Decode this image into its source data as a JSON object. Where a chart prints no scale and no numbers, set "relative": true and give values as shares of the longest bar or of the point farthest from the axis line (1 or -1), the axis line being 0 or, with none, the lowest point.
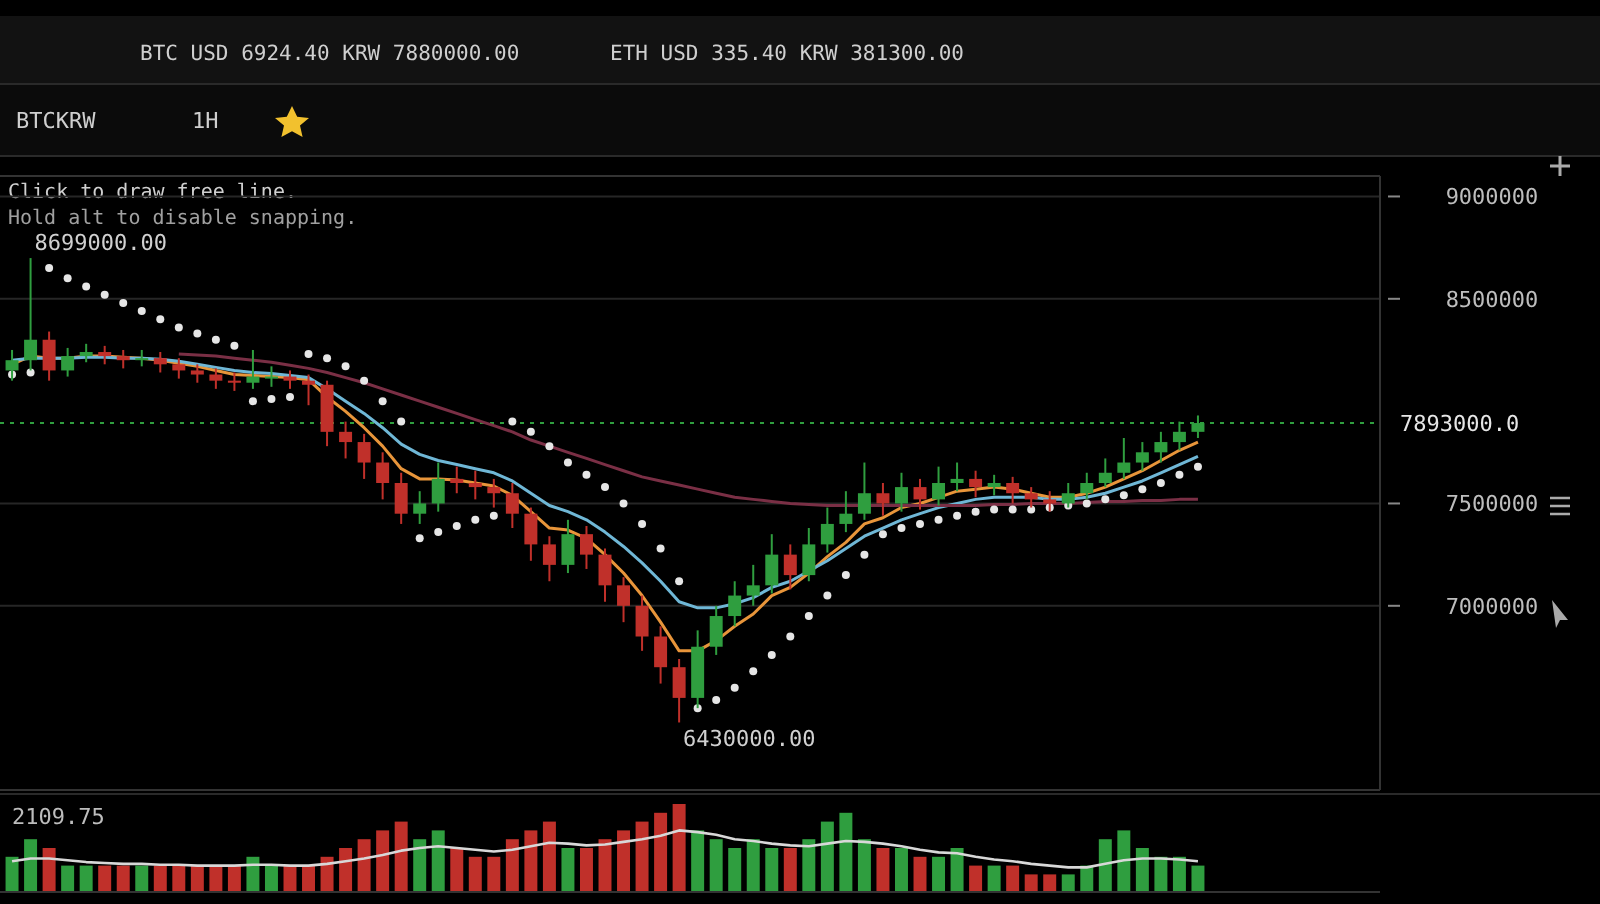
{
  "chart_data": [
    {
      "type": "candlestick",
      "categories": [
        null,
        null,
        null,
        null,
        null,
        null,
        null,
        null,
        null,
        null,
        null,
        null,
        null,
        null,
        null,
        null,
        null,
        null,
        null,
        null,
        null,
        null,
        null,
        null,
        null,
        null,
        null,
        null,
        null,
        null,
        null,
        null,
        null,
        null,
        null,
        null,
        null,
        null,
        null,
        null,
        null,
        null,
        null,
        null,
        null,
        null,
        null,
        null,
        null,
        null,
        null,
        null,
        null,
        null,
        null,
        null,
        null,
        null,
        null,
        null,
        null,
        null,
        null,
        null,
        null
      ],
      "ohlc": [
        [
          8150000,
          8250000,
          8100000,
          8200000
        ],
        [
          8200000,
          8699000,
          8150000,
          8300000
        ],
        [
          8300000,
          8340000,
          8100000,
          8150000
        ],
        [
          8150000,
          8260000,
          8120000,
          8220000
        ],
        [
          8220000,
          8280000,
          8190000,
          8240000
        ],
        [
          8240000,
          8270000,
          8180000,
          8220000
        ],
        [
          8220000,
          8250000,
          8160000,
          8200000
        ],
        [
          8200000,
          8250000,
          8170000,
          8210000
        ],
        [
          8210000,
          8240000,
          8140000,
          8180000
        ],
        [
          8180000,
          8210000,
          8110000,
          8150000
        ],
        [
          8150000,
          8180000,
          8090000,
          8130000
        ],
        [
          8130000,
          8160000,
          8060000,
          8100000
        ],
        [
          8100000,
          8140000,
          8050000,
          8090000
        ],
        [
          8090000,
          8250000,
          8060000,
          8120000
        ],
        [
          8120000,
          8170000,
          8070000,
          8120000
        ],
        [
          8120000,
          8150000,
          8060000,
          8100000
        ],
        [
          8100000,
          8130000,
          7980000,
          8080000
        ],
        [
          8080000,
          8100000,
          7780000,
          7850000
        ],
        [
          7850000,
          7900000,
          7720000,
          7800000
        ],
        [
          7800000,
          7840000,
          7620000,
          7700000
        ],
        [
          7700000,
          7750000,
          7520000,
          7600000
        ],
        [
          7600000,
          7650000,
          7400000,
          7450000
        ],
        [
          7450000,
          7560000,
          7400000,
          7500000
        ],
        [
          7500000,
          7700000,
          7460000,
          7620000
        ],
        [
          7620000,
          7680000,
          7550000,
          7600000
        ],
        [
          7600000,
          7660000,
          7520000,
          7580000
        ],
        [
          7580000,
          7620000,
          7480000,
          7550000
        ],
        [
          7550000,
          7600000,
          7380000,
          7450000
        ],
        [
          7450000,
          7480000,
          7220000,
          7300000
        ],
        [
          7300000,
          7340000,
          7120000,
          7200000
        ],
        [
          7200000,
          7420000,
          7160000,
          7350000
        ],
        [
          7350000,
          7390000,
          7180000,
          7250000
        ],
        [
          7250000,
          7280000,
          7020000,
          7100000
        ],
        [
          7100000,
          7140000,
          6920000,
          7000000
        ],
        [
          7000000,
          7050000,
          6780000,
          6850000
        ],
        [
          6850000,
          6900000,
          6620000,
          6700000
        ],
        [
          6700000,
          6740000,
          6430000,
          6550000
        ],
        [
          6550000,
          6880000,
          6500000,
          6800000
        ],
        [
          6800000,
          7000000,
          6760000,
          6950000
        ],
        [
          6950000,
          7120000,
          6900000,
          7050000
        ],
        [
          7050000,
          7200000,
          7000000,
          7100000
        ],
        [
          7100000,
          7350000,
          7060000,
          7250000
        ],
        [
          7250000,
          7300000,
          7080000,
          7150000
        ],
        [
          7150000,
          7380000,
          7120000,
          7300000
        ],
        [
          7300000,
          7480000,
          7260000,
          7400000
        ],
        [
          7400000,
          7560000,
          7360000,
          7450000
        ],
        [
          7450000,
          7700000,
          7420000,
          7550000
        ],
        [
          7550000,
          7600000,
          7440000,
          7500000
        ],
        [
          7500000,
          7650000,
          7460000,
          7580000
        ],
        [
          7580000,
          7620000,
          7470000,
          7520000
        ],
        [
          7520000,
          7680000,
          7490000,
          7600000
        ],
        [
          7600000,
          7700000,
          7560000,
          7620000
        ],
        [
          7620000,
          7660000,
          7530000,
          7580000
        ],
        [
          7580000,
          7640000,
          7540000,
          7600000
        ],
        [
          7600000,
          7630000,
          7500000,
          7550000
        ],
        [
          7550000,
          7580000,
          7480000,
          7520000
        ],
        [
          7520000,
          7560000,
          7460000,
          7500000
        ],
        [
          7500000,
          7600000,
          7480000,
          7550000
        ],
        [
          7550000,
          7650000,
          7520000,
          7600000
        ],
        [
          7600000,
          7720000,
          7580000,
          7650000
        ],
        [
          7650000,
          7820000,
          7620000,
          7700000
        ],
        [
          7700000,
          7800000,
          7660000,
          7750000
        ],
        [
          7750000,
          7850000,
          7700000,
          7800000
        ],
        [
          7800000,
          7900000,
          7760000,
          7850000
        ],
        [
          7850000,
          7930000,
          7820000,
          7893000
        ]
      ],
      "colors": [
        "#2f9e3f",
        "#2f9e3f",
        "#c0302a",
        "#2f9e3f",
        "#2f9e3f",
        "#c0302a",
        "#c0302a",
        "#2f9e3f",
        "#c0302a",
        "#c0302a",
        "#c0302a",
        "#c0302a",
        "#c0302a",
        "#2f9e3f",
        "#2f9e3f",
        "#c0302a",
        "#c0302a",
        "#c0302a",
        "#c0302a",
        "#c0302a",
        "#c0302a",
        "#c0302a",
        "#2f9e3f",
        "#2f9e3f",
        "#c0302a",
        "#c0302a",
        "#c0302a",
        "#c0302a",
        "#c0302a",
        "#c0302a",
        "#2f9e3f",
        "#c0302a",
        "#c0302a",
        "#c0302a",
        "#c0302a",
        "#c0302a",
        "#c0302a",
        "#2f9e3f",
        "#2f9e3f",
        "#2f9e3f",
        "#2f9e3f",
        "#2f9e3f",
        "#c0302a",
        "#2f9e3f",
        "#2f9e3f",
        "#2f9e3f",
        "#2f9e3f",
        "#c0302a",
        "#2f9e3f",
        "#c0302a",
        "#2f9e3f",
        "#2f9e3f",
        "#c0302a",
        "#2f9e3f",
        "#c0302a",
        "#c0302a",
        "#c0302a",
        "#2f9e3f",
        "#2f9e3f",
        "#2f9e3f",
        "#2f9e3f",
        "#2f9e3f",
        "#2f9e3f",
        "#2f9e3f",
        "#2f9e3f"
      ],
      "series": [
        {
          "type": "line",
          "color": "#e8953a",
          "values": [
            8180000,
            8220000,
            8210000,
            8210000,
            8220000,
            8220000,
            8215000,
            8210000,
            8200000,
            8185000,
            8170000,
            8150000,
            8130000,
            8125000,
            8120000,
            8115000,
            8105000,
            8020000,
            7950000,
            7870000,
            7780000,
            7670000,
            7620000,
            7620000,
            7615000,
            7600000,
            7585000,
            7540000,
            7460000,
            7380000,
            7370000,
            7330000,
            7250000,
            7160000,
            7050000,
            6920000,
            6780000,
            6780000,
            6830000,
            6900000,
            6960000,
            7050000,
            7090000,
            7160000,
            7240000,
            7310000,
            7400000,
            7430000,
            7480000,
            7500000,
            7530000,
            7560000,
            7570000,
            7580000,
            7570000,
            7550000,
            7530000,
            7530000,
            7550000,
            7580000,
            7620000,
            7660000,
            7710000,
            7760000,
            7800000
          ]
        },
        {
          "type": "line",
          "color": "#6fb7d6",
          "values": [
            8200000,
            8210000,
            8210000,
            8210000,
            8215000,
            8215000,
            8210000,
            8210000,
            8205000,
            8195000,
            8180000,
            8165000,
            8150000,
            8140000,
            8135000,
            8125000,
            8115000,
            8060000,
            8000000,
            7940000,
            7870000,
            7790000,
            7740000,
            7710000,
            7690000,
            7670000,
            7650000,
            7610000,
            7550000,
            7490000,
            7460000,
            7420000,
            7360000,
            7290000,
            7210000,
            7120000,
            7020000,
            6990000,
            6990000,
            7010000,
            7040000,
            7090000,
            7120000,
            7170000,
            7220000,
            7280000,
            7340000,
            7380000,
            7420000,
            7450000,
            7480000,
            7500000,
            7520000,
            7530000,
            7530000,
            7530000,
            7520000,
            7520000,
            7530000,
            7550000,
            7580000,
            7610000,
            7650000,
            7690000,
            7730000
          ]
        },
        {
          "type": "line",
          "color": "#7a2f45",
          "values": [
            null,
            null,
            null,
            null,
            null,
            null,
            null,
            null,
            null,
            8230000,
            8225000,
            8220000,
            8210000,
            8200000,
            8190000,
            8175000,
            8160000,
            8140000,
            8115000,
            8090000,
            8060000,
            8030000,
            8000000,
            7970000,
            7940000,
            7910000,
            7880000,
            7850000,
            7810000,
            7780000,
            7750000,
            7720000,
            7690000,
            7660000,
            7630000,
            7610000,
            7590000,
            7570000,
            7550000,
            7530000,
            7520000,
            7510000,
            7500000,
            7495000,
            7490000,
            7490000,
            7490000,
            7490000,
            7490000,
            7490000,
            7490000,
            7490000,
            7490000,
            7495000,
            7495000,
            7500000,
            7500000,
            7500000,
            7505000,
            7510000,
            7510000,
            7515000,
            7515000,
            7520000,
            7520000
          ]
        },
        {
          "type": "scatter",
          "color": "#e6e6e6",
          "marker": "circle",
          "values": [
            8130000,
            8140000,
            8650000,
            8600000,
            8560000,
            8520000,
            8480000,
            8440000,
            8400000,
            8360000,
            8330000,
            8300000,
            8270000,
            8000000,
            8010000,
            8020000,
            8230000,
            8210000,
            8170000,
            8100000,
            8000000,
            7900000,
            7330000,
            7360000,
            7390000,
            7420000,
            7440000,
            7900000,
            7850000,
            7780000,
            7700000,
            7640000,
            7580000,
            7500000,
            7400000,
            7280000,
            7120000,
            6500000,
            6540000,
            6600000,
            6680000,
            6760000,
            6850000,
            6950000,
            7050000,
            7150000,
            7250000,
            7350000,
            7380000,
            7400000,
            7420000,
            7440000,
            7460000,
            7470000,
            7470000,
            7470000,
            7480000,
            7490000,
            7500000,
            7520000,
            7540000,
            7570000,
            7600000,
            7640000,
            7680000
          ]
        }
      ],
      "ylim": [
        6100000,
        9100000
      ],
      "yticks": [
        7000000,
        7500000,
        8500000,
        9000000
      ],
      "grid": "y",
      "ref_lines": [
        {
          "axis": "y",
          "value": 7893000,
          "label": "7893000.0",
          "color": "#2f9e3f",
          "line_style": "dotted"
        }
      ],
      "annotations": [
        "BTC USD 6924.40 KRW 7880000.00",
        "ETH USD 335.40 KRW 381300.00",
        "BTCKRW",
        "1H",
        "Click to draw free line.",
        "Hold alt to disable snapping.",
        "8699000.00",
        "6430000.00"
      ]
    },
    {
      "type": "bar",
      "relative": true,
      "categories": [
        null,
        null,
        null,
        null,
        null,
        null,
        null,
        null,
        null,
        null,
        null,
        null,
        null,
        null,
        null,
        null,
        null,
        null,
        null,
        null,
        null,
        null,
        null,
        null,
        null,
        null,
        null,
        null,
        null,
        null,
        null,
        null,
        null,
        null,
        null,
        null,
        null,
        null,
        null,
        null,
        null,
        null,
        null,
        null,
        null,
        null,
        null,
        null,
        null,
        null,
        null,
        null,
        null,
        null,
        null,
        null,
        null,
        null,
        null,
        null,
        null,
        null,
        null,
        null,
        null
      ],
      "series": [
        {
          "type": "bar",
          "values": [
            0.4,
            0.6,
            0.5,
            0.3,
            0.3,
            0.3,
            0.3,
            0.3,
            0.3,
            0.3,
            0.3,
            0.3,
            0.3,
            0.4,
            0.3,
            0.3,
            0.3,
            0.4,
            0.5,
            0.6,
            0.7,
            0.8,
            0.6,
            0.7,
            0.5,
            0.4,
            0.4,
            0.6,
            0.7,
            0.8,
            0.5,
            0.5,
            0.6,
            0.7,
            0.8,
            0.9,
            1,
            0.7,
            0.6,
            0.5,
            0.6,
            0.5,
            0.5,
            0.6,
            0.8,
            0.9,
            0.6,
            0.5,
            0.5,
            0.4,
            0.4,
            0.5,
            0.3,
            0.3,
            0.3,
            0.2,
            0.2,
            0.2,
            0.3,
            0.6,
            0.7,
            0.5,
            0.4,
            0.4,
            0.3
          ],
          "colors": [
            "#2f9e3f",
            "#2f9e3f",
            "#c0302a",
            "#2f9e3f",
            "#2f9e3f",
            "#c0302a",
            "#c0302a",
            "#2f9e3f",
            "#c0302a",
            "#c0302a",
            "#c0302a",
            "#c0302a",
            "#c0302a",
            "#2f9e3f",
            "#2f9e3f",
            "#c0302a",
            "#c0302a",
            "#c0302a",
            "#c0302a",
            "#c0302a",
            "#c0302a",
            "#c0302a",
            "#2f9e3f",
            "#2f9e3f",
            "#c0302a",
            "#c0302a",
            "#c0302a",
            "#c0302a",
            "#c0302a",
            "#c0302a",
            "#2f9e3f",
            "#c0302a",
            "#c0302a",
            "#c0302a",
            "#c0302a",
            "#c0302a",
            "#c0302a",
            "#2f9e3f",
            "#2f9e3f",
            "#2f9e3f",
            "#2f9e3f",
            "#2f9e3f",
            "#c0302a",
            "#2f9e3f",
            "#2f9e3f",
            "#2f9e3f",
            "#2f9e3f",
            "#c0302a",
            "#2f9e3f",
            "#c0302a",
            "#2f9e3f",
            "#2f9e3f",
            "#c0302a",
            "#2f9e3f",
            "#c0302a",
            "#c0302a",
            "#c0302a",
            "#2f9e3f",
            "#2f9e3f",
            "#2f9e3f",
            "#2f9e3f",
            "#2f9e3f",
            "#2f9e3f",
            "#2f9e3f",
            "#2f9e3f"
          ]
        },
        {
          "type": "line",
          "color": "#d8d8d8",
          "values": [
            0.35,
            0.38,
            0.38,
            0.36,
            0.34,
            0.33,
            0.32,
            0.32,
            0.31,
            0.31,
            0.3,
            0.3,
            0.3,
            0.31,
            0.31,
            0.3,
            0.3,
            0.32,
            0.35,
            0.38,
            0.42,
            0.47,
            0.5,
            0.52,
            0.5,
            0.48,
            0.46,
            0.48,
            0.52,
            0.56,
            0.55,
            0.53,
            0.54,
            0.57,
            0.6,
            0.64,
            0.7,
            0.68,
            0.65,
            0.6,
            0.58,
            0.55,
            0.53,
            0.52,
            0.55,
            0.58,
            0.57,
            0.55,
            0.52,
            0.48,
            0.45,
            0.44,
            0.4,
            0.37,
            0.35,
            0.32,
            0.3,
            0.28,
            0.28,
            0.32,
            0.36,
            0.38,
            0.38,
            0.37,
            0.35
          ]
        }
      ],
      "annotations": [
        "2109.75"
      ]
    }
  ]
}
